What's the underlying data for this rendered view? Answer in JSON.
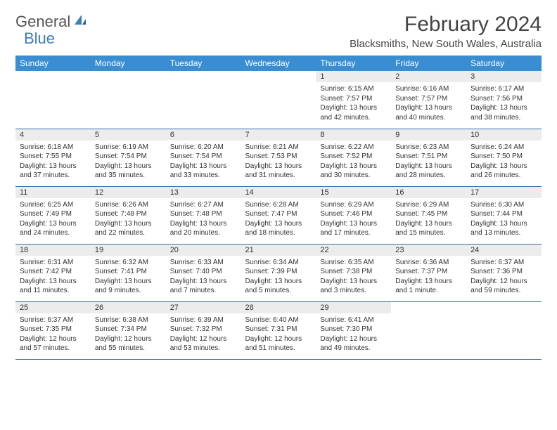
{
  "logo": {
    "text1": "General",
    "text2": "Blue"
  },
  "title": "February 2024",
  "location": "Blacksmiths, New South Wales, Australia",
  "colors": {
    "header_bg": "#3a8dd0",
    "header_text": "#ffffff",
    "daynum_bg": "#ececec",
    "row_border": "#3a6ea5",
    "logo_gray": "#555555",
    "logo_blue": "#3a7ebf"
  },
  "weekdays": [
    "Sunday",
    "Monday",
    "Tuesday",
    "Wednesday",
    "Thursday",
    "Friday",
    "Saturday"
  ],
  "grid": [
    [
      {
        "n": "",
        "sr": "",
        "ss": "",
        "dl": ""
      },
      {
        "n": "",
        "sr": "",
        "ss": "",
        "dl": ""
      },
      {
        "n": "",
        "sr": "",
        "ss": "",
        "dl": ""
      },
      {
        "n": "",
        "sr": "",
        "ss": "",
        "dl": ""
      },
      {
        "n": "1",
        "sr": "Sunrise: 6:15 AM",
        "ss": "Sunset: 7:57 PM",
        "dl": "Daylight: 13 hours and 42 minutes."
      },
      {
        "n": "2",
        "sr": "Sunrise: 6:16 AM",
        "ss": "Sunset: 7:57 PM",
        "dl": "Daylight: 13 hours and 40 minutes."
      },
      {
        "n": "3",
        "sr": "Sunrise: 6:17 AM",
        "ss": "Sunset: 7:56 PM",
        "dl": "Daylight: 13 hours and 38 minutes."
      }
    ],
    [
      {
        "n": "4",
        "sr": "Sunrise: 6:18 AM",
        "ss": "Sunset: 7:55 PM",
        "dl": "Daylight: 13 hours and 37 minutes."
      },
      {
        "n": "5",
        "sr": "Sunrise: 6:19 AM",
        "ss": "Sunset: 7:54 PM",
        "dl": "Daylight: 13 hours and 35 minutes."
      },
      {
        "n": "6",
        "sr": "Sunrise: 6:20 AM",
        "ss": "Sunset: 7:54 PM",
        "dl": "Daylight: 13 hours and 33 minutes."
      },
      {
        "n": "7",
        "sr": "Sunrise: 6:21 AM",
        "ss": "Sunset: 7:53 PM",
        "dl": "Daylight: 13 hours and 31 minutes."
      },
      {
        "n": "8",
        "sr": "Sunrise: 6:22 AM",
        "ss": "Sunset: 7:52 PM",
        "dl": "Daylight: 13 hours and 30 minutes."
      },
      {
        "n": "9",
        "sr": "Sunrise: 6:23 AM",
        "ss": "Sunset: 7:51 PM",
        "dl": "Daylight: 13 hours and 28 minutes."
      },
      {
        "n": "10",
        "sr": "Sunrise: 6:24 AM",
        "ss": "Sunset: 7:50 PM",
        "dl": "Daylight: 13 hours and 26 minutes."
      }
    ],
    [
      {
        "n": "11",
        "sr": "Sunrise: 6:25 AM",
        "ss": "Sunset: 7:49 PM",
        "dl": "Daylight: 13 hours and 24 minutes."
      },
      {
        "n": "12",
        "sr": "Sunrise: 6:26 AM",
        "ss": "Sunset: 7:48 PM",
        "dl": "Daylight: 13 hours and 22 minutes."
      },
      {
        "n": "13",
        "sr": "Sunrise: 6:27 AM",
        "ss": "Sunset: 7:48 PM",
        "dl": "Daylight: 13 hours and 20 minutes."
      },
      {
        "n": "14",
        "sr": "Sunrise: 6:28 AM",
        "ss": "Sunset: 7:47 PM",
        "dl": "Daylight: 13 hours and 18 minutes."
      },
      {
        "n": "15",
        "sr": "Sunrise: 6:29 AM",
        "ss": "Sunset: 7:46 PM",
        "dl": "Daylight: 13 hours and 17 minutes."
      },
      {
        "n": "16",
        "sr": "Sunrise: 6:29 AM",
        "ss": "Sunset: 7:45 PM",
        "dl": "Daylight: 13 hours and 15 minutes."
      },
      {
        "n": "17",
        "sr": "Sunrise: 6:30 AM",
        "ss": "Sunset: 7:44 PM",
        "dl": "Daylight: 13 hours and 13 minutes."
      }
    ],
    [
      {
        "n": "18",
        "sr": "Sunrise: 6:31 AM",
        "ss": "Sunset: 7:42 PM",
        "dl": "Daylight: 13 hours and 11 minutes."
      },
      {
        "n": "19",
        "sr": "Sunrise: 6:32 AM",
        "ss": "Sunset: 7:41 PM",
        "dl": "Daylight: 13 hours and 9 minutes."
      },
      {
        "n": "20",
        "sr": "Sunrise: 6:33 AM",
        "ss": "Sunset: 7:40 PM",
        "dl": "Daylight: 13 hours and 7 minutes."
      },
      {
        "n": "21",
        "sr": "Sunrise: 6:34 AM",
        "ss": "Sunset: 7:39 PM",
        "dl": "Daylight: 13 hours and 5 minutes."
      },
      {
        "n": "22",
        "sr": "Sunrise: 6:35 AM",
        "ss": "Sunset: 7:38 PM",
        "dl": "Daylight: 13 hours and 3 minutes."
      },
      {
        "n": "23",
        "sr": "Sunrise: 6:36 AM",
        "ss": "Sunset: 7:37 PM",
        "dl": "Daylight: 13 hours and 1 minute."
      },
      {
        "n": "24",
        "sr": "Sunrise: 6:37 AM",
        "ss": "Sunset: 7:36 PM",
        "dl": "Daylight: 12 hours and 59 minutes."
      }
    ],
    [
      {
        "n": "25",
        "sr": "Sunrise: 6:37 AM",
        "ss": "Sunset: 7:35 PM",
        "dl": "Daylight: 12 hours and 57 minutes."
      },
      {
        "n": "26",
        "sr": "Sunrise: 6:38 AM",
        "ss": "Sunset: 7:34 PM",
        "dl": "Daylight: 12 hours and 55 minutes."
      },
      {
        "n": "27",
        "sr": "Sunrise: 6:39 AM",
        "ss": "Sunset: 7:32 PM",
        "dl": "Daylight: 12 hours and 53 minutes."
      },
      {
        "n": "28",
        "sr": "Sunrise: 6:40 AM",
        "ss": "Sunset: 7:31 PM",
        "dl": "Daylight: 12 hours and 51 minutes."
      },
      {
        "n": "29",
        "sr": "Sunrise: 6:41 AM",
        "ss": "Sunset: 7:30 PM",
        "dl": "Daylight: 12 hours and 49 minutes."
      },
      {
        "n": "",
        "sr": "",
        "ss": "",
        "dl": ""
      },
      {
        "n": "",
        "sr": "",
        "ss": "",
        "dl": ""
      }
    ]
  ]
}
